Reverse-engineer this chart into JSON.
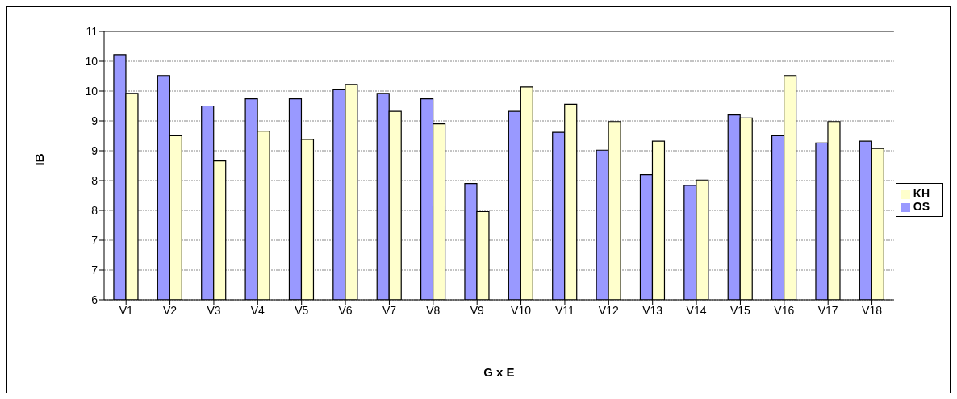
{
  "chart_data": {
    "type": "bar",
    "xlabel": "G x E",
    "ylabel": "IB",
    "categories": [
      "V1",
      "V2",
      "V3",
      "V4",
      "V5",
      "V6",
      "V7",
      "V8",
      "V9",
      "V10",
      "V11",
      "V12",
      "V13",
      "V14",
      "V15",
      "V16",
      "V17",
      "V18"
    ],
    "series": [
      {
        "name": "OS",
        "color": "#9999ff",
        "values": [
          10.11,
          9.76,
          9.25,
          9.37,
          9.37,
          9.52,
          9.46,
          9.37,
          7.95,
          9.16,
          8.81,
          8.51,
          8.1,
          7.92,
          9.1,
          8.75,
          8.63,
          8.66
        ]
      },
      {
        "name": "KH",
        "color": "#ffffcc",
        "values": [
          9.46,
          8.75,
          8.33,
          8.83,
          8.69,
          9.61,
          9.16,
          8.95,
          7.48,
          9.57,
          9.28,
          8.99,
          8.66,
          8.01,
          9.05,
          9.76,
          8.99,
          8.54
        ]
      }
    ],
    "ylim": [
      6,
      10.5
    ],
    "yticks": [
      {
        "value": 6,
        "label": "6"
      },
      {
        "value": 6.5,
        "label": "7"
      },
      {
        "value": 7,
        "label": "7"
      },
      {
        "value": 7.5,
        "label": "8"
      },
      {
        "value": 8,
        "label": "8"
      },
      {
        "value": 8.5,
        "label": "9"
      },
      {
        "value": 9,
        "label": "9"
      },
      {
        "value": 9.5,
        "label": "10"
      },
      {
        "value": 10,
        "label": "10"
      },
      {
        "value": 10.5,
        "label": "11"
      }
    ],
    "grid": "y",
    "legend": "right"
  }
}
